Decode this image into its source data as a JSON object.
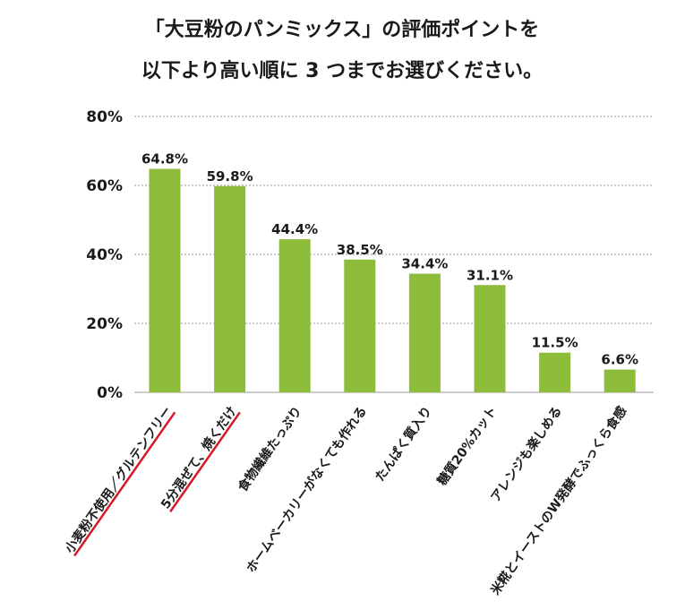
{
  "chart_data": {
    "type": "bar",
    "title": "「大豆粉のパンミックス」の評価ポイントを",
    "subtitle": "以下より高い順に 3 つまでお選びください。",
    "categories": [
      "小麦粉不使用／グルテンフリー",
      "5分混ぜて、焼くだけ",
      "食物繊維たっぷり",
      "ホームベーカリーがなくても作れる",
      "たんぱく質入り",
      "糖質20%カット",
      "アレンジも楽しめる",
      "米糀とイーストのW発酵でふっくら食感"
    ],
    "values": [
      64.8,
      59.8,
      44.4,
      38.5,
      34.4,
      31.1,
      11.5,
      6.6
    ],
    "value_labels": [
      "64.8%",
      "59.8%",
      "44.4%",
      "38.5%",
      "34.4%",
      "31.1%",
      "11.5%",
      "6.6%"
    ],
    "ylim": [
      0,
      80
    ],
    "yticks": [
      0,
      20,
      40,
      60,
      80
    ],
    "ytick_labels": [
      "0%",
      "20%",
      "40%",
      "60%",
      "80%"
    ],
    "xlabel": "",
    "ylabel": "",
    "grid": true,
    "highlighted_categories": [
      0,
      1
    ],
    "colors": {
      "bar": "#8dbb3a",
      "highlight_underline": "#d7182a",
      "grid": "#9a9a9a",
      "text": "#1a1a1a"
    }
  }
}
